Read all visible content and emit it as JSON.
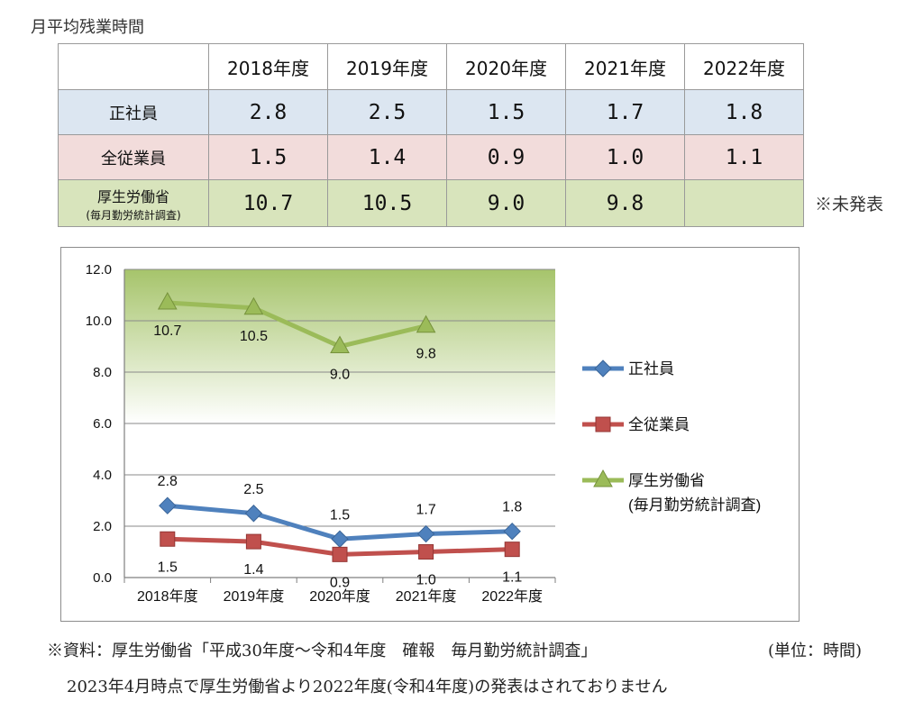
{
  "page_title": "月平均残業時間",
  "table": {
    "corner": "",
    "headers": [
      "2018年度",
      "2019年度",
      "2020年度",
      "2021年度",
      "2022年度"
    ],
    "rows": [
      {
        "label": "正社員",
        "values": [
          "2.8",
          "2.5",
          "1.5",
          "1.7",
          "1.8"
        ]
      },
      {
        "label": "全従業員",
        "values": [
          "1.5",
          "1.4",
          "0.9",
          "1.0",
          "1.1"
        ]
      },
      {
        "label": "厚生労働省",
        "sublabel": "(毎月勤労統計調査)",
        "values": [
          "10.7",
          "10.5",
          "9.0",
          "9.8",
          ""
        ]
      }
    ]
  },
  "unreleased_note": "※未発表",
  "chart_data": {
    "type": "line",
    "categories": [
      "2018年度",
      "2019年度",
      "2020年度",
      "2021年度",
      "2022年度"
    ],
    "ylim": [
      0,
      12
    ],
    "yticks": [
      "0.0",
      "2.0",
      "4.0",
      "6.0",
      "8.0",
      "10.0",
      "12.0"
    ],
    "grid": true,
    "legend_position": "right",
    "series": [
      {
        "name": "正社員",
        "values": [
          2.8,
          2.5,
          1.5,
          1.7,
          1.8
        ],
        "labels": [
          "2.8",
          "2.5",
          "1.5",
          "1.7",
          "1.8"
        ],
        "color": "#4f81bd",
        "marker": "diamond",
        "label_position": "above"
      },
      {
        "name": "全従業員",
        "values": [
          1.5,
          1.4,
          0.9,
          1.0,
          1.1
        ],
        "labels": [
          "1.5",
          "1.4",
          "0.9",
          "1.0",
          "1.1"
        ],
        "color": "#c0504d",
        "marker": "square",
        "label_position": "below"
      },
      {
        "name": "厚生労働省",
        "name_line2": "(毎月勤労統計調査)",
        "values": [
          10.7,
          10.5,
          9.0,
          9.8,
          null
        ],
        "labels": [
          "10.7",
          "10.5",
          "9.0",
          "9.8",
          ""
        ],
        "color": "#9bbb59",
        "marker": "triangle",
        "label_position": "below"
      }
    ],
    "band": {
      "from": 6.0,
      "to": 12.0,
      "color_top": "#a6c46b",
      "color_bottom": "#ffffff"
    }
  },
  "footnote": {
    "line1": "※資料：厚生労働省「平成30年度～令和4年度　確報　毎月勤労統計調査」",
    "unit": "(単位：時間)",
    "line2": "2023年4月時点で厚生労働省より2022年度(令和4年度)の発表はされておりません"
  }
}
